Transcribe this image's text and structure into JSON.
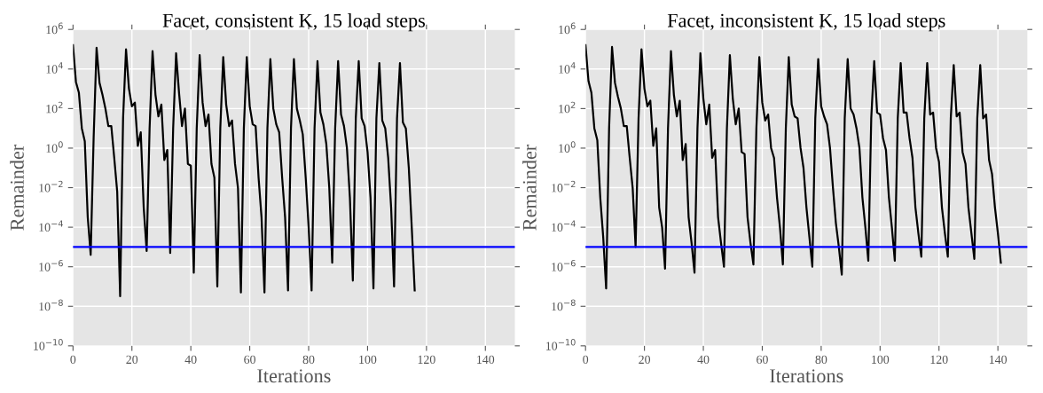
{
  "chart_data": [
    {
      "type": "line",
      "title": "Facet, consistent K, 15 load steps",
      "xlabel": "Iterations",
      "ylabel": "Remainder",
      "log": "y",
      "grid": true,
      "xlim": [
        0,
        150
      ],
      "xticks": [
        0,
        20,
        40,
        60,
        80,
        100,
        120,
        140
      ],
      "ylim": [
        1e-10,
        1000000.0
      ],
      "yticks": [
        {
          "value": 1e-10,
          "label": "10$^{−10}$"
        },
        {
          "value": 1e-08,
          "label": "10$^{−8}$"
        },
        {
          "value": 1e-06,
          "label": "10$^{−6}$"
        },
        {
          "value": 0.0001,
          "label": "10$^{−4}$"
        },
        {
          "value": 0.01,
          "label": "10$^{−2}$"
        },
        {
          "value": 1,
          "label": "10$^{0}$"
        },
        {
          "value": 100,
          "label": "10$^{2}$"
        },
        {
          "value": 10000.0,
          "label": "10$^{4}$"
        },
        {
          "value": 1000000.0,
          "label": "10$^{6}$"
        }
      ],
      "ref_lines": [
        {
          "axis": "y",
          "value": 1e-05,
          "color": "#0000ff"
        }
      ],
      "series": [
        {
          "color": "#000000",
          "x": [
            0,
            1,
            2,
            3,
            4,
            5,
            6,
            7,
            8,
            9,
            10,
            11,
            12,
            13,
            14,
            15,
            16,
            17,
            18,
            19,
            20,
            21,
            22,
            23,
            24,
            25,
            26,
            27,
            28,
            29,
            30,
            31,
            32,
            33,
            34,
            35,
            36,
            37,
            38,
            39,
            40,
            41,
            42,
            43,
            44,
            45,
            46,
            47,
            48,
            49,
            50,
            51,
            52,
            53,
            54,
            55,
            56,
            57,
            58,
            59,
            60,
            61,
            62,
            63,
            64,
            65,
            66,
            67,
            68,
            69,
            70,
            71,
            72,
            73,
            74,
            75,
            76,
            77,
            78,
            79,
            80,
            81,
            82,
            83,
            84,
            85,
            86,
            87,
            88,
            89,
            90,
            91,
            92,
            93,
            94,
            95,
            96,
            97,
            98,
            99,
            100,
            101,
            102,
            103,
            104,
            105,
            106,
            107,
            108,
            109,
            110,
            111,
            112,
            113,
            114,
            115,
            116
          ],
          "values": [
            160000.0,
            2200.0,
            630,
            10,
            2.2,
            0.00032,
            4e-06,
            3.2,
            120000.0,
            2000,
            500,
            100,
            13,
            13,
            0.32,
            0.0063,
            3.2e-08,
            32,
            100000.0,
            1000,
            130,
            200,
            1.3,
            6.3,
            0.001,
            6.3e-06,
            10,
            80000.0,
            500,
            40,
            160,
            0.25,
            0.8,
            5e-06,
            10,
            63000.0,
            630,
            13,
            100,
            0.16,
            0.13,
            5e-07,
            10,
            50000.0,
            200,
            13,
            50,
            0.16,
            0.032,
            1e-07,
            10,
            40000.0,
            160,
            13,
            25,
            0.16,
            0.01,
            5e-08,
            10,
            40000.0,
            130,
            16,
            13,
            0.032,
            0.00032,
            5e-08,
            10,
            32000.0,
            100,
            16,
            6.3,
            0.032,
            0.00032,
            6.3e-08,
            10,
            32000.0,
            100,
            25,
            5,
            0.032,
            0.0001,
            6.3e-08,
            10,
            25000.0,
            63,
            16,
            1.6,
            0.01,
            1.6e-06,
            10,
            25000.0,
            50,
            13,
            1,
            0.0032,
            2e-07,
            32,
            25000.0,
            32,
            13,
            0.63,
            0.0032,
            8e-08,
            32,
            20000.0,
            25,
            10,
            0.32,
            0.001,
            1e-07,
            32,
            20000.0,
            20,
            10,
            0.1,
            0.0001,
            6.3e-08
          ]
        }
      ]
    },
    {
      "type": "line",
      "title": "Facet, inconsistent K, 15 load steps",
      "xlabel": "Iterations",
      "ylabel": "Remainder",
      "log": "y",
      "grid": true,
      "xlim": [
        0,
        150
      ],
      "xticks": [
        0,
        20,
        40,
        60,
        80,
        100,
        120,
        140
      ],
      "ylim": [
        1e-10,
        1000000.0
      ],
      "yticks": [
        {
          "value": 1e-10,
          "label": "10$^{−10}$"
        },
        {
          "value": 1e-08,
          "label": "10$^{−8}$"
        },
        {
          "value": 1e-06,
          "label": "10$^{−6}$"
        },
        {
          "value": 0.0001,
          "label": "10$^{−4}$"
        },
        {
          "value": 0.01,
          "label": "10$^{−2}$"
        },
        {
          "value": 1,
          "label": "10$^{0}$"
        },
        {
          "value": 100,
          "label": "10$^{2}$"
        },
        {
          "value": 10000.0,
          "label": "10$^{4}$"
        },
        {
          "value": 1000000.0,
          "label": "10$^{6}$"
        }
      ],
      "ref_lines": [
        {
          "axis": "y",
          "value": 1e-05,
          "color": "#0000ff"
        }
      ],
      "series": [
        {
          "color": "#000000",
          "x": [
            0,
            1,
            2,
            3,
            4,
            5,
            6,
            7,
            8,
            9,
            10,
            11,
            12,
            13,
            14,
            15,
            16,
            17,
            18,
            19,
            20,
            21,
            22,
            23,
            24,
            25,
            26,
            27,
            28,
            29,
            30,
            31,
            32,
            33,
            34,
            35,
            36,
            37,
            38,
            39,
            40,
            41,
            42,
            43,
            44,
            45,
            46,
            47,
            48,
            49,
            50,
            51,
            52,
            53,
            54,
            55,
            56,
            57,
            58,
            59,
            60,
            61,
            62,
            63,
            64,
            65,
            66,
            67,
            68,
            69,
            70,
            71,
            72,
            73,
            74,
            75,
            76,
            77,
            78,
            79,
            80,
            81,
            82,
            83,
            84,
            85,
            86,
            87,
            88,
            89,
            90,
            91,
            92,
            93,
            94,
            95,
            96,
            97,
            98,
            99,
            100,
            101,
            102,
            103,
            104,
            105,
            106,
            107,
            108,
            109,
            110,
            111,
            112,
            113,
            114,
            115,
            116,
            117,
            118,
            119,
            120,
            121,
            122,
            123,
            124,
            125,
            126,
            127,
            128,
            129,
            130,
            131,
            132,
            133,
            134,
            135,
            136,
            137,
            138,
            139,
            140,
            141
          ],
          "values": [
            160000.0,
            2500.0,
            630,
            10,
            2.5,
            0.0032,
            3.2e-05,
            8e-08,
            10,
            130000.0,
            2000,
            400,
            100,
            13,
            13,
            0.32,
            0.01,
            1e-05,
            32,
            100000.0,
            1000,
            130,
            250,
            1.3,
            10,
            0.001,
            0.0001,
            8e-07,
            10,
            80000.0,
            500,
            40,
            250,
            0.25,
            1.6,
            0.00032,
            1.6e-05,
            5e-07,
            10,
            63000.0,
            320,
            16,
            160,
            0.32,
            0.8,
            0.00032,
            1.6e-05,
            1e-06,
            10,
            50000.0,
            320,
            16,
            100,
            0.63,
            0.5,
            0.00032,
            1.6e-05,
            1.3e-06,
            10,
            40000.0,
            200,
            25,
            50,
            1,
            0.32,
            0.0032,
            0.0001,
            1.3e-06,
            10,
            40000.0,
            160,
            40,
            32,
            1,
            0.1,
            0.001,
            3.2e-05,
            1e-06,
            32,
            32000.0,
            130,
            40,
            16,
            1,
            0.01,
            0.00016,
            1e-05,
            4e-07,
            32,
            32000.0,
            100,
            50,
            10,
            1,
            0.0032,
            0.0001,
            2e-06,
            32,
            25000.0,
            63,
            50,
            3.2,
            0.8,
            0.0032,
            0.0001,
            2e-06,
            32,
            20000.0,
            63,
            63,
            3.2,
            0.32,
            0.001,
            5e-05,
            3.2e-06,
            32,
            20000.0,
            50,
            63,
            1,
            0.2,
            0.001,
            5e-05,
            3.2e-06,
            32,
            16000.0,
            40,
            63,
            0.63,
            0.16,
            0.001,
            5e-05,
            2.5e-06,
            32,
            16000.0,
            32,
            50,
            0.25,
            0.05,
            0.001,
            5e-05,
            1.6e-06
          ]
        }
      ]
    }
  ]
}
